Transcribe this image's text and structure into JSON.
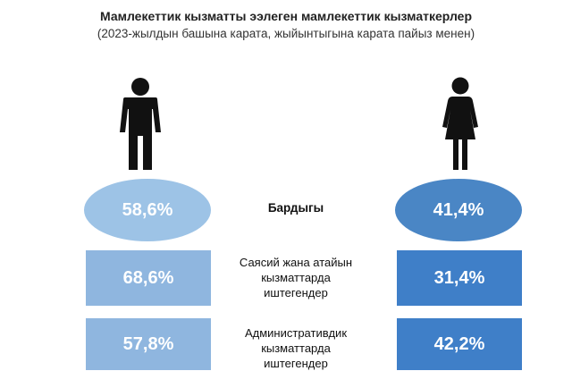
{
  "title": "Мамлекеттик кызматты ээлеген мамлекеттик кызматкерлер",
  "subtitle": "(2023-жылдын башына карата, жыйынтыгына карата пайыз менен)",
  "icons": {
    "left": "man-icon",
    "right": "woman-icon",
    "color": "#111111"
  },
  "colors": {
    "men": "#9dc3e6",
    "women": "#4a86c5",
    "men_box": "#8fb6df",
    "women_box": "#3f7fc8"
  },
  "chart_data": {
    "type": "table",
    "title": "Мамлекеттик кызматты ээлеген мамлекеттик кызматкерлер",
    "subtitle": "(2023-жылдын башына карата, жыйынтыгына карата пайыз менен)",
    "columns": [
      "man-icon",
      "woman-icon"
    ],
    "rows": [
      {
        "label": "Бардыгы",
        "men": "58,6%",
        "women": "41,4%",
        "men_value": 58.6,
        "women_value": 41.4
      },
      {
        "label_lines": [
          "Саясий жана атайын",
          "кызматтарда",
          "иштегендер"
        ],
        "men": "68,6%",
        "women": "31,4%",
        "men_value": 68.6,
        "women_value": 31.4
      },
      {
        "label_lines": [
          "Административдик",
          "кызматтарда",
          "иштегендер"
        ],
        "men": "57,8%",
        "women": "42,2%",
        "men_value": 57.8,
        "women_value": 42.2
      }
    ]
  }
}
